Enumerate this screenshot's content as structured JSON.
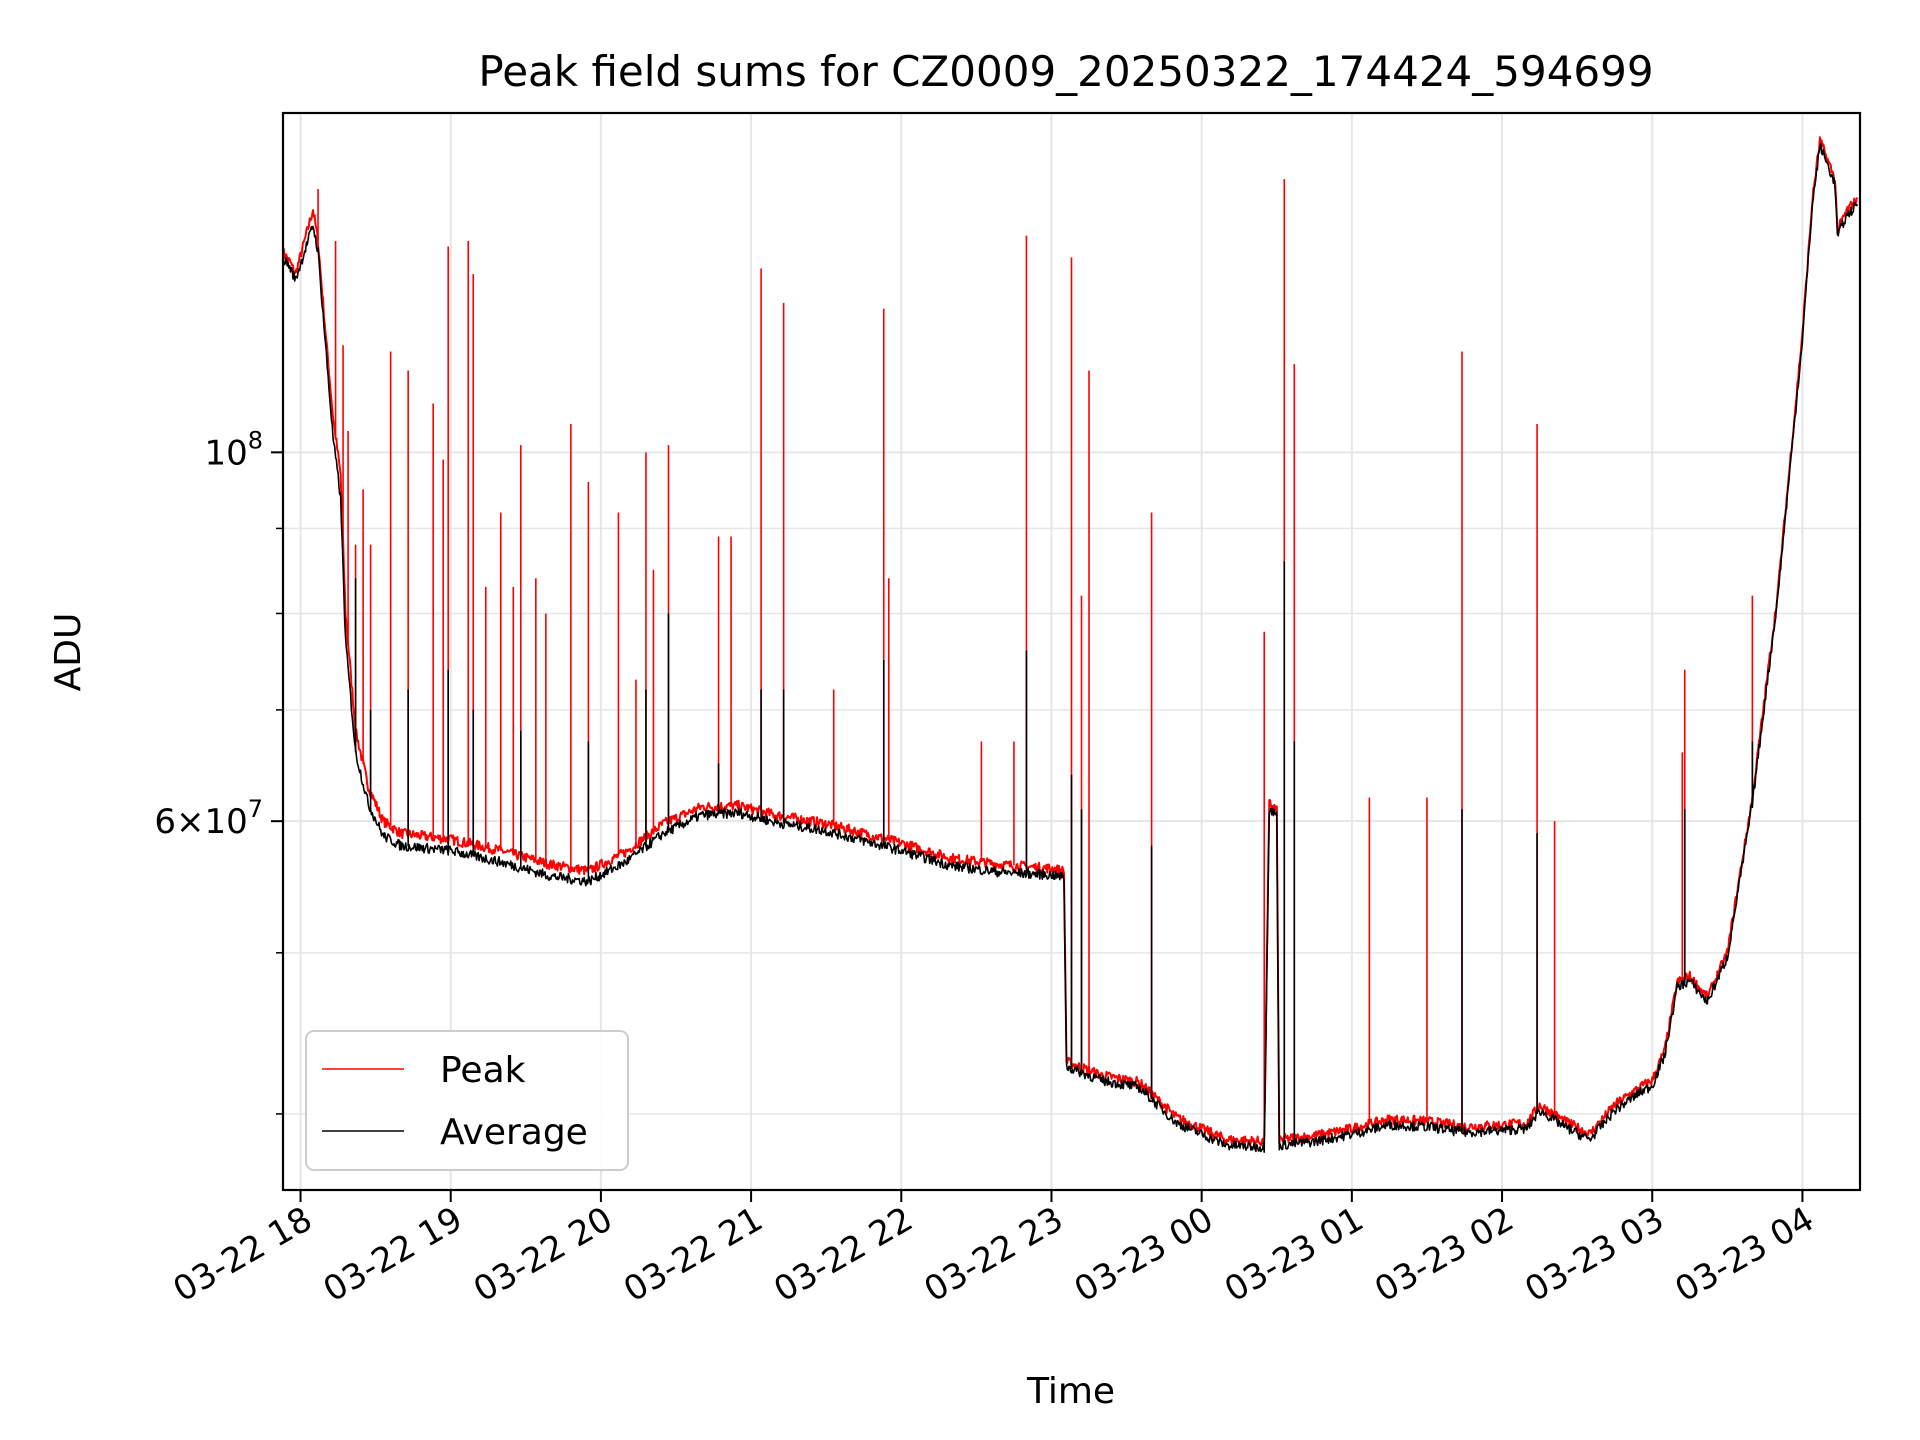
{
  "chart_data": {
    "type": "line",
    "title": "Peak field sums for CZ0009_20250322_174424_594699",
    "xlabel": "Time",
    "ylabel": "ADU",
    "yscale": "log",
    "xlim": [
      "2025-03-22 17:53",
      "2025-03-23 04:23"
    ],
    "ylim": [
      36000000,
      160000000
    ],
    "grid": true,
    "legend_position": "lower-left",
    "x_ticks": [
      {
        "label": "03-22 18",
        "value": "2025-03-22 18:00"
      },
      {
        "label": "03-22 19",
        "value": "2025-03-22 19:00"
      },
      {
        "label": "03-22 20",
        "value": "2025-03-22 20:00"
      },
      {
        "label": "03-22 21",
        "value": "2025-03-22 21:00"
      },
      {
        "label": "03-22 22",
        "value": "2025-03-22 22:00"
      },
      {
        "label": "03-22 23",
        "value": "2025-03-22 23:00"
      },
      {
        "label": "03-23 00",
        "value": "2025-03-23 00:00"
      },
      {
        "label": "03-23 01",
        "value": "2025-03-23 01:00"
      },
      {
        "label": "03-23 02",
        "value": "2025-03-23 02:00"
      },
      {
        "label": "03-23 03",
        "value": "2025-03-23 03:00"
      },
      {
        "label": "03-23 04",
        "value": "2025-03-23 04:00"
      }
    ],
    "y_major_ticks": [
      {
        "value": 60000000,
        "mantissa": "6",
        "exponent": "7"
      },
      {
        "value": 100000000,
        "mantissa": "",
        "exponent": "8"
      }
    ],
    "y_minor_ticks": [
      40000000,
      50000000,
      70000000,
      80000000,
      90000000
    ],
    "colors": {
      "peak": "#ff0000",
      "average": "#000000",
      "grid": "#e6e6e6"
    },
    "series": [
      {
        "name": "Peak",
        "color": "#ff0000",
        "baseline": [
          [
            "2025-03-22 17:53",
            132000000
          ],
          [
            "2025-03-22 17:56",
            130000000
          ],
          [
            "2025-03-22 17:58",
            128000000
          ],
          [
            "2025-03-22 18:05",
            140000000
          ],
          [
            "2025-03-22 18:07",
            134000000
          ],
          [
            "2025-03-22 18:10",
            118000000
          ],
          [
            "2025-03-22 18:13",
            105000000
          ],
          [
            "2025-03-22 18:16",
            97000000
          ],
          [
            "2025-03-22 18:18",
            80000000
          ],
          [
            "2025-03-22 18:22",
            68000000
          ],
          [
            "2025-03-22 18:27",
            63000000
          ],
          [
            "2025-03-22 18:33",
            60000000
          ],
          [
            "2025-03-22 18:40",
            59000000
          ],
          [
            "2025-03-22 19:00",
            58500000
          ],
          [
            "2025-03-22 19:20",
            57600000
          ],
          [
            "2025-03-22 19:40",
            56500000
          ],
          [
            "2025-03-22 19:55",
            56000000
          ],
          [
            "2025-03-22 20:10",
            57500000
          ],
          [
            "2025-03-22 20:25",
            59800000
          ],
          [
            "2025-03-22 20:40",
            61200000
          ],
          [
            "2025-03-22 20:55",
            61300000
          ],
          [
            "2025-03-22 21:10",
            60500000
          ],
          [
            "2025-03-22 21:30",
            59800000
          ],
          [
            "2025-03-22 22:00",
            58200000
          ],
          [
            "2025-03-22 22:20",
            57000000
          ],
          [
            "2025-03-22 22:40",
            56500000
          ],
          [
            "2025-03-22 23:00",
            56200000
          ],
          [
            "2025-03-22 23:05",
            56000000
          ],
          [
            "2025-03-22 23:06",
            43000000
          ],
          [
            "2025-03-22 23:20",
            42200000
          ],
          [
            "2025-03-22 23:35",
            41800000
          ],
          [
            "2025-03-22 23:50",
            39800000
          ],
          [
            "2025-03-23 00:10",
            38600000
          ],
          [
            "2025-03-23 00:25",
            38500000
          ],
          [
            "2025-03-23 00:27",
            61500000
          ],
          [
            "2025-03-23 00:30",
            61000000
          ],
          [
            "2025-03-23 00:31",
            38600000
          ],
          [
            "2025-03-23 00:45",
            38800000
          ],
          [
            "2025-03-23 01:00",
            39200000
          ],
          [
            "2025-03-23 01:15",
            39700000
          ],
          [
            "2025-03-23 01:30",
            39600000
          ],
          [
            "2025-03-23 01:45",
            39300000
          ],
          [
            "2025-03-23 02:00",
            39400000
          ],
          [
            "2025-03-23 02:10",
            39500000
          ],
          [
            "2025-03-23 02:15",
            40500000
          ],
          [
            "2025-03-23 02:25",
            39600000
          ],
          [
            "2025-03-23 02:35",
            38900000
          ],
          [
            "2025-03-23 02:45",
            40500000
          ],
          [
            "2025-03-23 02:55",
            41500000
          ],
          [
            "2025-03-23 03:00",
            41900000
          ],
          [
            "2025-03-23 03:05",
            43700000
          ],
          [
            "2025-03-23 03:10",
            48000000
          ],
          [
            "2025-03-23 03:15",
            48400000
          ],
          [
            "2025-03-23 03:22",
            47000000
          ],
          [
            "2025-03-23 03:30",
            50000000
          ],
          [
            "2025-03-23 03:40",
            62000000
          ],
          [
            "2025-03-23 03:50",
            82000000
          ],
          [
            "2025-03-23 04:00",
            118000000
          ],
          [
            "2025-03-23 04:04",
            142000000
          ],
          [
            "2025-03-23 04:07",
            154000000
          ],
          [
            "2025-03-23 04:10",
            150000000
          ],
          [
            "2025-03-23 04:13",
            146000000
          ],
          [
            "2025-03-23 04:14",
            136000000
          ],
          [
            "2025-03-23 04:18",
            140000000
          ],
          [
            "2025-03-23 04:22",
            142000000
          ]
        ],
        "spikes": [
          [
            "2025-03-22 18:07",
            144000000
          ],
          [
            "2025-03-22 18:14",
            134000000
          ],
          [
            "2025-03-22 18:17",
            116000000
          ],
          [
            "2025-03-22 18:19",
            103000000
          ],
          [
            "2025-03-22 18:22",
            88000000
          ],
          [
            "2025-03-22 18:25",
            95000000
          ],
          [
            "2025-03-22 18:28",
            88000000
          ],
          [
            "2025-03-22 18:36",
            115000000
          ],
          [
            "2025-03-22 18:43",
            112000000
          ],
          [
            "2025-03-22 18:53",
            107000000
          ],
          [
            "2025-03-22 18:57",
            99000000
          ],
          [
            "2025-03-22 18:59",
            133000000
          ],
          [
            "2025-03-22 19:07",
            134000000
          ],
          [
            "2025-03-22 19:09",
            128000000
          ],
          [
            "2025-03-22 19:14",
            83000000
          ],
          [
            "2025-03-22 19:20",
            92000000
          ],
          [
            "2025-03-22 19:25",
            83000000
          ],
          [
            "2025-03-22 19:28",
            101000000
          ],
          [
            "2025-03-22 19:34",
            84000000
          ],
          [
            "2025-03-22 19:38",
            80000000
          ],
          [
            "2025-03-22 19:48",
            104000000
          ],
          [
            "2025-03-22 19:55",
            96000000
          ],
          [
            "2025-03-22 20:07",
            92000000
          ],
          [
            "2025-03-22 20:14",
            73000000
          ],
          [
            "2025-03-22 20:18",
            100000000
          ],
          [
            "2025-03-22 20:21",
            85000000
          ],
          [
            "2025-03-22 20:27",
            101000000
          ],
          [
            "2025-03-22 20:47",
            89000000
          ],
          [
            "2025-03-22 20:52",
            89000000
          ],
          [
            "2025-03-22 21:04",
            129000000
          ],
          [
            "2025-03-22 21:13",
            123000000
          ],
          [
            "2025-03-22 21:33",
            72000000
          ],
          [
            "2025-03-22 21:53",
            122000000
          ],
          [
            "2025-03-22 21:55",
            84000000
          ],
          [
            "2025-03-22 22:32",
            67000000
          ],
          [
            "2025-03-22 22:45",
            67000000
          ],
          [
            "2025-03-22 22:50",
            135000000
          ],
          [
            "2025-03-22 23:08",
            131000000
          ],
          [
            "2025-03-22 23:12",
            82000000
          ],
          [
            "2025-03-22 23:15",
            112000000
          ],
          [
            "2025-03-22 23:40",
            92000000
          ],
          [
            "2025-03-23 00:33",
            146000000
          ],
          [
            "2025-03-23 00:37",
            113000000
          ],
          [
            "2025-03-23 00:25",
            78000000
          ],
          [
            "2025-03-23 01:07",
            62000000
          ],
          [
            "2025-03-23 01:30",
            62000000
          ],
          [
            "2025-03-23 01:44",
            115000000
          ],
          [
            "2025-03-23 02:14",
            104000000
          ],
          [
            "2025-03-23 02:21",
            60000000
          ],
          [
            "2025-03-23 03:12",
            66000000
          ],
          [
            "2025-03-23 03:13",
            74000000
          ],
          [
            "2025-03-23 03:40",
            82000000
          ]
        ]
      },
      {
        "name": "Average",
        "color": "#000000",
        "baseline": [
          [
            "2025-03-22 17:53",
            131000000
          ],
          [
            "2025-03-22 17:56",
            129000000
          ],
          [
            "2025-03-22 17:58",
            127000000
          ],
          [
            "2025-03-22 18:05",
            137000000
          ],
          [
            "2025-03-22 18:07",
            132000000
          ],
          [
            "2025-03-22 18:10",
            116000000
          ],
          [
            "2025-03-22 18:13",
            102000000
          ],
          [
            "2025-03-22 18:16",
            94000000
          ],
          [
            "2025-03-22 18:18",
            77000000
          ],
          [
            "2025-03-22 18:22",
            66000000
          ],
          [
            "2025-03-22 18:27",
            61500000
          ],
          [
            "2025-03-22 18:33",
            58800000
          ],
          [
            "2025-03-22 18:40",
            58000000
          ],
          [
            "2025-03-22 19:00",
            57600000
          ],
          [
            "2025-03-22 19:20",
            56700000
          ],
          [
            "2025-03-22 19:40",
            55600000
          ],
          [
            "2025-03-22 19:55",
            55200000
          ],
          [
            "2025-03-22 20:10",
            56700000
          ],
          [
            "2025-03-22 20:25",
            59000000
          ],
          [
            "2025-03-22 20:40",
            60500000
          ],
          [
            "2025-03-22 20:55",
            60700000
          ],
          [
            "2025-03-22 21:10",
            59900000
          ],
          [
            "2025-03-22 21:30",
            59200000
          ],
          [
            "2025-03-22 22:00",
            57600000
          ],
          [
            "2025-03-22 22:20",
            56400000
          ],
          [
            "2025-03-22 22:40",
            55900000
          ],
          [
            "2025-03-22 23:00",
            55700000
          ],
          [
            "2025-03-22 23:05",
            55500000
          ],
          [
            "2025-03-22 23:06",
            42700000
          ],
          [
            "2025-03-22 23:20",
            41900000
          ],
          [
            "2025-03-22 23:35",
            41500000
          ],
          [
            "2025-03-22 23:50",
            39500000
          ],
          [
            "2025-03-23 00:10",
            38300000
          ],
          [
            "2025-03-23 00:25",
            38200000
          ],
          [
            "2025-03-23 00:27",
            61000000
          ],
          [
            "2025-03-23 00:30",
            60500000
          ],
          [
            "2025-03-23 00:31",
            38300000
          ],
          [
            "2025-03-23 00:45",
            38500000
          ],
          [
            "2025-03-23 01:00",
            38900000
          ],
          [
            "2025-03-23 01:15",
            39400000
          ],
          [
            "2025-03-23 01:30",
            39300000
          ],
          [
            "2025-03-23 01:45",
            39000000
          ],
          [
            "2025-03-23 02:00",
            39100000
          ],
          [
            "2025-03-23 02:10",
            39200000
          ],
          [
            "2025-03-23 02:15",
            40200000
          ],
          [
            "2025-03-23 02:25",
            39300000
          ],
          [
            "2025-03-23 02:35",
            38600000
          ],
          [
            "2025-03-23 02:45",
            40200000
          ],
          [
            "2025-03-23 02:55",
            41200000
          ],
          [
            "2025-03-23 03:00",
            41600000
          ],
          [
            "2025-03-23 03:05",
            43400000
          ],
          [
            "2025-03-23 03:10",
            47700000
          ],
          [
            "2025-03-23 03:15",
            48100000
          ],
          [
            "2025-03-23 03:22",
            46700000
          ],
          [
            "2025-03-23 03:30",
            49700000
          ],
          [
            "2025-03-23 03:40",
            61500000
          ],
          [
            "2025-03-23 03:50",
            81500000
          ],
          [
            "2025-03-23 04:00",
            117000000
          ],
          [
            "2025-03-23 04:04",
            141000000
          ],
          [
            "2025-03-23 04:07",
            153000000
          ],
          [
            "2025-03-23 04:10",
            149000000
          ],
          [
            "2025-03-23 04:13",
            145000000
          ],
          [
            "2025-03-23 04:14",
            135000000
          ],
          [
            "2025-03-23 04:18",
            139000000
          ],
          [
            "2025-03-23 04:22",
            141000000
          ]
        ],
        "spikes": [
          [
            "2025-03-22 18:22",
            84000000
          ],
          [
            "2025-03-22 18:28",
            70000000
          ],
          [
            "2025-03-22 18:43",
            72000000
          ],
          [
            "2025-03-22 18:59",
            74000000
          ],
          [
            "2025-03-22 19:09",
            70000000
          ],
          [
            "2025-03-22 19:28",
            68000000
          ],
          [
            "2025-03-22 19:55",
            67000000
          ],
          [
            "2025-03-22 20:18",
            72000000
          ],
          [
            "2025-03-22 20:27",
            80000000
          ],
          [
            "2025-03-22 20:47",
            65000000
          ],
          [
            "2025-03-22 21:04",
            72000000
          ],
          [
            "2025-03-22 21:13",
            72000000
          ],
          [
            "2025-03-22 21:53",
            75000000
          ],
          [
            "2025-03-22 22:50",
            76000000
          ],
          [
            "2025-03-22 23:08",
            64000000
          ],
          [
            "2025-03-22 23:12",
            61000000
          ],
          [
            "2025-03-22 23:40",
            58000000
          ],
          [
            "2025-03-23 00:33",
            86000000
          ],
          [
            "2025-03-23 00:37",
            67000000
          ],
          [
            "2025-03-23 01:44",
            61000000
          ],
          [
            "2025-03-23 02:14",
            59000000
          ],
          [
            "2025-03-23 03:13",
            61000000
          ],
          [
            "2025-03-23 03:40",
            67000000
          ]
        ]
      }
    ]
  }
}
